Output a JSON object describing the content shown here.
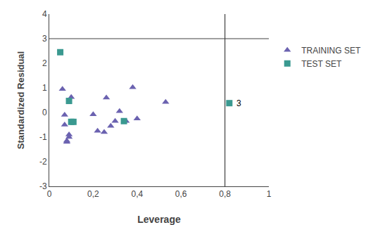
{
  "chart_data": {
    "type": "scatter",
    "xlabel": "Leverage",
    "ylabel": "Standardized Residual",
    "series": [
      {
        "name": "TRAINING SET",
        "color": "#6B62B0",
        "marker": "triangle-up",
        "x": [
          0.06,
          0.07,
          0.07,
          0.08,
          0.08,
          0.09,
          0.09,
          0.1,
          0.2,
          0.22,
          0.25,
          0.26,
          0.28,
          0.3,
          0.32,
          0.35,
          0.38,
          0.4,
          0.53
        ],
        "values": [
          0.95,
          -0.1,
          -0.5,
          -1.15,
          -1.2,
          -0.9,
          -1.0,
          0.62,
          -0.08,
          -0.75,
          -0.8,
          0.6,
          -0.55,
          -0.35,
          0.05,
          -0.35,
          1.02,
          -0.25,
          0.42
        ]
      },
      {
        "name": "TEST SET",
        "color": "#3A9990",
        "marker": "square",
        "x": [
          0.05,
          0.09,
          0.1,
          0.11,
          0.34,
          0.82
        ],
        "values": [
          2.45,
          0.47,
          -0.38,
          -0.38,
          -0.35,
          0.38
        ]
      }
    ],
    "reference_lines": [
      {
        "axis": "y",
        "value": 3.0,
        "color": "#404040"
      },
      {
        "axis": "x",
        "value": 0.8,
        "color": "#404040"
      }
    ],
    "annotations": [
      {
        "text": "3",
        "x": 0.845,
        "y": 0.38
      }
    ],
    "xlim": [
      0,
      1.0
    ],
    "ylim": [
      -3,
      4
    ],
    "xticks": [
      0,
      {
        "value": 0.2,
        "label": "0,2"
      },
      {
        "value": 0.4,
        "label": "0,4"
      },
      {
        "value": 0.6,
        "label": "0,6"
      },
      {
        "value": 0.8,
        "label": "0,8"
      },
      1
    ],
    "yticks": [
      -3,
      -2,
      -1,
      0,
      1,
      2,
      3,
      4
    ],
    "grid": false,
    "legend": "right"
  }
}
